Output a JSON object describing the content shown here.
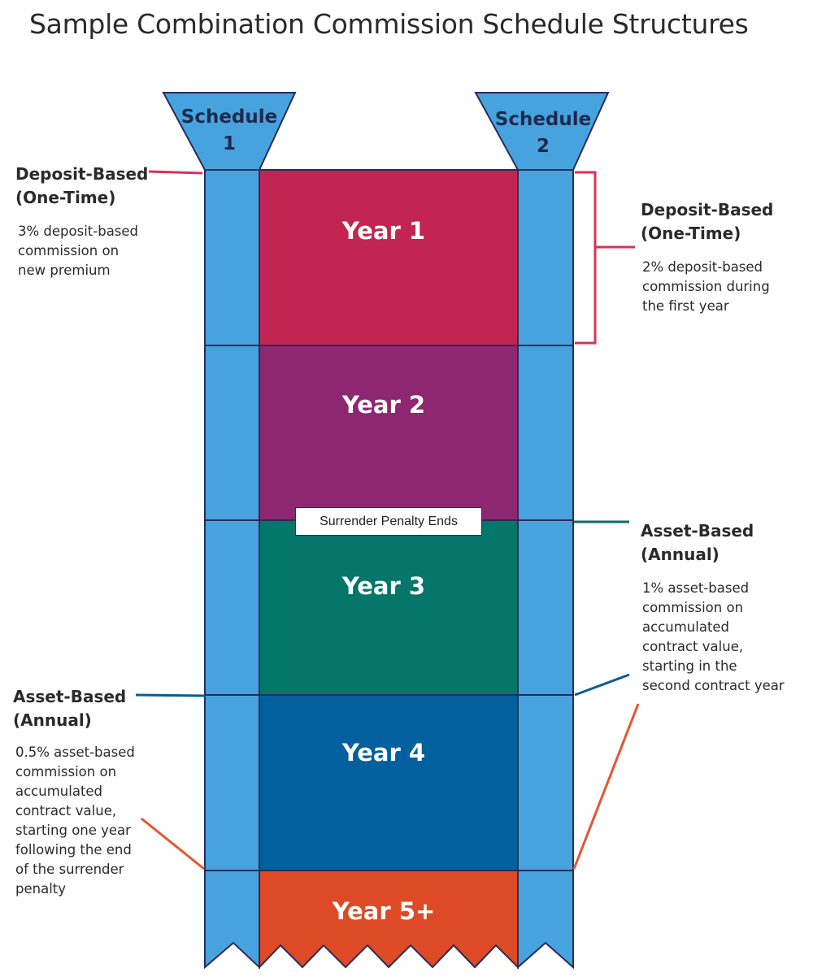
{
  "title": "Sample Combination Commission Schedule Structures",
  "schedules": [
    {
      "line1": "Schedule",
      "line2": "1"
    },
    {
      "line1": "Schedule",
      "line2": "2"
    }
  ],
  "years": [
    "Year 1",
    "Year 2",
    "Year 3",
    "Year 4",
    "Year 5+"
  ],
  "marker": "Surrender Penalty Ends",
  "schedule1": {
    "deposit": {
      "heading_line1": "Deposit-Based",
      "heading_line2": "(One-Time)",
      "body": [
        "3% deposit-based",
        "commission on",
        "new premium"
      ]
    },
    "asset": {
      "heading_line1": "Asset-Based",
      "heading_line2": "(Annual)",
      "body": [
        "0.5% asset-based",
        "commission on",
        "accumulated",
        "contract value,",
        "starting one year",
        "following the end",
        "of the surrender",
        "penalty"
      ]
    }
  },
  "schedule2": {
    "deposit": {
      "heading_line1": "Deposit-Based",
      "heading_line2": "(One-Time)",
      "body": [
        "2% deposit-based",
        "commission during",
        "the first year"
      ]
    },
    "asset": {
      "heading_line1": "Asset-Based",
      "heading_line2": "(Annual)",
      "body": [
        "1% asset-based",
        "commission on",
        "accumulated",
        "contract value,",
        "starting in the",
        "second contract year"
      ]
    }
  },
  "colors": {
    "column": "#47a3de",
    "outline": "#2b2b5a",
    "year1": "#c22551",
    "year2": "#8d2771",
    "year3": "#04766a",
    "year4": "#02609e",
    "year5": "#de4a25",
    "deposit_pointer": "#d9315a",
    "asset_pointer_upper": "#0a6a6a",
    "asset_pointer_lower": "#0a5e8e",
    "asset_pointer_orange": "#e5562c"
  }
}
